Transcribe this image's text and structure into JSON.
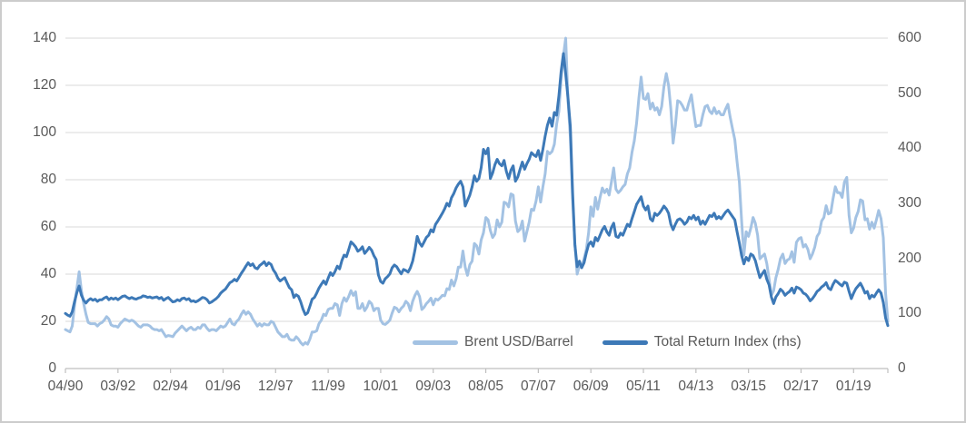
{
  "chart": {
    "left_axis": {
      "tick_labels": [
        "140",
        "120",
        "100",
        "80",
        "60",
        "40",
        "20",
        "0"
      ],
      "min": 0,
      "max": 140,
      "step": 20
    },
    "right_axis": {
      "tick_labels": [
        "600",
        "500",
        "400",
        "300",
        "200",
        "100",
        "0"
      ],
      "min": 0,
      "max": 600,
      "step": 100
    },
    "x_axis": {
      "tick_labels": [
        "04/90",
        "03/92",
        "02/94",
        "01/96",
        "12/97",
        "11/99",
        "10/01",
        "09/03",
        "08/05",
        "07/07",
        "06/09",
        "05/11",
        "04/13",
        "03/15",
        "02/17",
        "01/19"
      ],
      "tick_interval_months": 23
    },
    "legend": [
      {
        "label": "Brent USD/Barrel",
        "color": "#a3c2e3"
      },
      {
        "label": "Total Return Index (rhs)",
        "color": "#3d79b7"
      }
    ],
    "colors": {
      "brent_line": "#a3c2e3",
      "index_line": "#3d79b7",
      "gridline": "#d9d9d9",
      "axis_line": "#bfbfbf",
      "label_text": "#595959"
    }
  },
  "chart_data": {
    "type": "line",
    "title": "",
    "xlabel": "",
    "ylabel_left": "",
    "ylabel_right": "",
    "frequency": "monthly",
    "x_start": "1990-04",
    "x_end": "2020-04",
    "grid": true,
    "legend_position": "bottom-inside",
    "left_ylim": [
      0,
      140
    ],
    "right_ylim": [
      0,
      600
    ],
    "series": [
      {
        "name": "Brent USD/Barrel",
        "axis": "left",
        "color": "#a3c2e3",
        "values_by_year": {
          "1990": [
            16.5,
            16,
            15.5,
            18,
            27,
            34,
            41,
            33,
            27.5
          ],
          "1991": [
            23,
            19.5,
            19,
            19,
            19,
            18,
            19,
            19.5,
            20.5,
            22,
            21,
            18.5
          ],
          "1992": [
            18,
            18,
            17.5,
            19,
            20,
            21,
            20.5,
            20,
            20.5,
            20,
            19,
            18
          ],
          "1993": [
            17.5,
            18.5,
            18.5,
            18.5,
            18,
            17,
            16.5,
            16.5,
            16,
            16.5,
            15,
            13.5
          ],
          "1994": [
            14,
            13.8,
            13.5,
            15,
            16,
            17,
            18,
            17,
            16,
            17,
            17.5,
            16.5
          ],
          "1995": [
            16.5,
            17.5,
            17,
            18.5,
            18.5,
            17,
            16,
            16.5,
            16.5,
            16,
            17,
            18
          ],
          "1996": [
            17.5,
            18,
            19.5,
            21,
            19,
            18.5,
            20,
            21,
            23,
            24.5,
            23,
            24
          ],
          "1997": [
            23,
            21,
            19.5,
            18,
            19,
            18,
            19,
            18.5,
            18.5,
            20,
            19.5,
            17.5
          ],
          "1998": [
            15.5,
            14.5,
            13.5,
            13.5,
            14.5,
            12.5,
            12,
            12,
            13.5,
            12.5,
            11,
            10
          ],
          "1999": [
            11,
            10.3,
            12.5,
            15.5,
            15.5,
            16,
            19,
            20.5,
            23,
            22.5,
            25,
            25.5
          ],
          "2000": [
            25.5,
            27.5,
            27,
            22.5,
            27.5,
            30,
            28.5,
            30.5,
            33,
            31,
            32.5,
            25.5
          ],
          "2001": [
            25.5,
            27.5,
            24.5,
            26,
            28.5,
            27.5,
            24.5,
            25.5,
            25.5,
            20.5,
            19,
            18.7
          ],
          "2002": [
            19.5,
            20.5,
            23.5,
            26,
            25.5,
            24,
            25.5,
            26.5,
            28.5,
            27.5,
            24.5,
            28.5
          ],
          "2003": [
            31,
            32.7,
            30.5,
            25,
            26,
            27.5,
            28.5,
            29.8,
            27,
            29.5,
            29,
            29.9
          ],
          "2004": [
            31,
            30.8,
            33.8,
            33.5,
            37.5,
            35,
            38,
            43,
            43,
            49.8,
            43,
            39.5
          ],
          "2005": [
            44,
            45.5,
            53,
            52,
            48.5,
            54.5,
            57.5,
            64,
            63,
            58.5,
            55.5,
            57
          ],
          "2006": [
            63,
            60,
            62,
            70.5,
            70,
            68.5,
            74,
            73.5,
            62.5,
            58,
            59,
            62.5
          ],
          "2007": [
            54,
            58,
            62,
            67.5,
            67,
            71,
            77,
            70.5,
            77,
            82.5,
            92,
            91
          ],
          "2008": [
            92,
            95,
            103.5,
            109,
            123,
            132.5,
            140,
            113,
            98,
            72,
            53,
            40
          ],
          "2009": [
            43.5,
            43,
            46.5,
            50.5,
            57.5,
            68.5,
            64.5,
            72.5,
            67.5,
            72.5,
            76.5,
            74.5
          ],
          "2010": [
            76,
            73.5,
            79,
            85,
            76,
            74.5,
            75.5,
            77,
            78,
            82.5,
            85,
            91.5
          ],
          "2011": [
            96.5,
            104,
            114.5,
            123.5,
            114.5,
            114,
            116.5,
            110,
            112.5,
            109.5,
            110.5,
            107.5
          ],
          "2012": [
            111,
            119.5,
            125,
            120,
            110,
            95.5,
            103,
            113.5,
            113,
            111.5,
            109.5,
            109.5
          ],
          "2013": [
            113,
            116,
            109,
            102.5,
            103,
            103,
            107.5,
            111,
            111.5,
            109,
            108,
            110.5
          ],
          "2014": [
            108,
            109,
            107.5,
            107.5,
            110,
            112,
            106.5,
            101.5,
            97,
            87.5,
            79,
            62.5
          ],
          "2015": [
            48,
            58,
            56,
            59.5,
            64,
            61.5,
            56.5,
            46.5,
            47.5,
            48.5,
            44.5,
            38
          ],
          "2016": [
            31,
            33,
            38.5,
            42,
            46.5,
            48.5,
            44.5,
            46,
            46.5,
            49.5,
            45,
            53.5
          ],
          "2017": [
            55,
            55.5,
            51.5,
            52.5,
            50.5,
            46.5,
            48.5,
            51.5,
            56,
            57.5,
            62.5,
            64
          ],
          "2018": [
            69,
            65.5,
            66,
            72,
            77,
            74.5,
            74.5,
            72.5,
            79,
            81,
            65,
            57.5
          ],
          "2019": [
            59.5,
            64,
            66.5,
            71.5,
            71,
            63,
            63.5,
            59,
            62,
            59.5,
            63,
            67
          ],
          "2020": [
            63.5,
            55.5,
            32,
            20
          ]
        }
      },
      {
        "name": "Total Return Index (rhs)",
        "axis": "right",
        "color": "#3d79b7",
        "values_by_year": {
          "1990": [
            100,
            97,
            95,
            103,
            122,
            138,
            150,
            133,
            124
          ],
          "1991": [
            119,
            124,
            127,
            124,
            126,
            122,
            125,
            125,
            128,
            130,
            125,
            128
          ],
          "1992": [
            126,
            128,
            125,
            128,
            131,
            132,
            129,
            127,
            129,
            127,
            126,
            128
          ],
          "1993": [
            129,
            132,
            131,
            129,
            130,
            128,
            129,
            130,
            127,
            129,
            124,
            127
          ],
          "1994": [
            129,
            125,
            121,
            122,
            125,
            123,
            127,
            128,
            125,
            127,
            122,
            123
          ],
          "1995": [
            121,
            123,
            126,
            129,
            128,
            125,
            119,
            121,
            124,
            127,
            131,
            137
          ],
          "1996": [
            141,
            144,
            150,
            156,
            158,
            162,
            159,
            166,
            173,
            179,
            186,
            192
          ],
          "1997": [
            187,
            190,
            183,
            181,
            187,
            190,
            194,
            187,
            192,
            189,
            179,
            173
          ],
          "1998": [
            164,
            159,
            162,
            165,
            156,
            147,
            143,
            129,
            134,
            131,
            121,
            108
          ],
          "1999": [
            98,
            101,
            113,
            126,
            129,
            137,
            146,
            153,
            159,
            153,
            164,
            174
          ],
          "2000": [
            169,
            176,
            186,
            181,
            196,
            206,
            203,
            216,
            230,
            226,
            221,
            213
          ],
          "2001": [
            216,
            221,
            209,
            214,
            220,
            215,
            205,
            198,
            170,
            158,
            155,
            163
          ],
          "2002": [
            167,
            172,
            183,
            188,
            185,
            178,
            172,
            180,
            178,
            175,
            183,
            195
          ],
          "2003": [
            215,
            240,
            228,
            222,
            230,
            238,
            242,
            252,
            248,
            262,
            268,
            275
          ],
          "2004": [
            282,
            290,
            300,
            295,
            310,
            318,
            328,
            335,
            340,
            330,
            295,
            305
          ],
          "2005": [
            315,
            330,
            350,
            340,
            345,
            365,
            398,
            390,
            400,
            345,
            355,
            370
          ],
          "2006": [
            380,
            372,
            368,
            378,
            358,
            345,
            360,
            368,
            340,
            348,
            362,
            375
          ],
          "2007": [
            362,
            372,
            380,
            392,
            388,
            385,
            396,
            378,
            398,
            422,
            442,
            455
          ],
          "2008": [
            440,
            465,
            460,
            495,
            540,
            572,
            535,
            490,
            440,
            320,
            225,
            185
          ],
          "2009": [
            195,
            183,
            192,
            210,
            225,
            230,
            222,
            238,
            232,
            242,
            252,
            258
          ],
          "2010": [
            248,
            242,
            256,
            264,
            240,
            238,
            246,
            242,
            252,
            262,
            258,
            272
          ],
          "2011": [
            285,
            298,
            305,
            312,
            295,
            288,
            295,
            272,
            268,
            282,
            278,
            282
          ],
          "2012": [
            288,
            295,
            290,
            282,
            262,
            252,
            262,
            270,
            272,
            268,
            262,
            266
          ],
          "2013": [
            275,
            272,
            278,
            270,
            275,
            262,
            268,
            262,
            270,
            278,
            276,
            282
          ],
          "2014": [
            272,
            276,
            272,
            278,
            284,
            288,
            282,
            276,
            270,
            248,
            228,
            205
          ],
          "2015": [
            190,
            202,
            196,
            208,
            205,
            196,
            180,
            165,
            172,
            178,
            162,
            152
          ],
          "2016": [
            130,
            118,
            130,
            136,
            144,
            140,
            133,
            137,
            140,
            146,
            137,
            148
          ],
          "2017": [
            146,
            143,
            137,
            135,
            130,
            123,
            127,
            133,
            140,
            143,
            148,
            151
          ],
          "2018": [
            156,
            146,
            143,
            153,
            160,
            157,
            153,
            150,
            157,
            155,
            140,
            127
          ],
          "2019": [
            137,
            145,
            150,
            155,
            147,
            137,
            140,
            127,
            133,
            130,
            137,
            143
          ],
          "2020": [
            137,
            120,
            92,
            78
          ]
        }
      }
    ]
  }
}
